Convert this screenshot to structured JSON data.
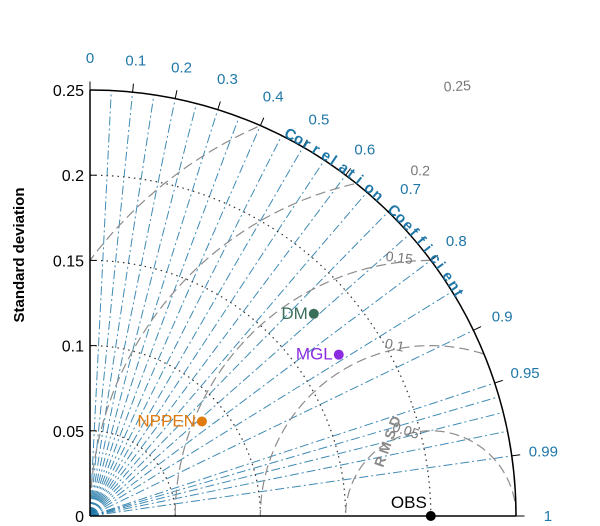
{
  "chart_data": {
    "type": "taylor",
    "title": "",
    "ylabel": "Standard deviation",
    "corr_axis_label": "Correlation Coefficient",
    "rmsd_label": "R M S D",
    "std_ticks": [
      "0",
      "0.05",
      "0.1",
      "0.15",
      "0.2",
      "0.25"
    ],
    "std_tick_values": [
      0,
      0.05,
      0.1,
      0.15,
      0.2,
      0.25
    ],
    "std_max": 0.25,
    "corr_ticks": [
      "0",
      "0.1",
      "0.2",
      "0.3",
      "0.4",
      "0.5",
      "0.6",
      "0.7",
      "0.8",
      "0.9",
      "0.95",
      "0.99",
      "1"
    ],
    "corr_tick_values": [
      0,
      0.1,
      0.2,
      0.3,
      0.4,
      0.5,
      0.6,
      0.7,
      0.8,
      0.9,
      0.95,
      0.99,
      1
    ],
    "rmsd_ticks": [
      "0.05",
      "0.1",
      "0.15",
      "0.2",
      "0.25"
    ],
    "rmsd_tick_values": [
      0.05,
      0.1,
      0.15,
      0.2,
      0.25
    ],
    "reference": {
      "name": "OBS",
      "std": 0.2,
      "corr": 1
    },
    "points": [
      {
        "name": "DM",
        "std": 0.177,
        "corr": 0.742,
        "color": "#3a6f5a"
      },
      {
        "name": "MGL",
        "std": 0.174,
        "corr": 0.839,
        "color": "#8a2be2"
      },
      {
        "name": "NPPEN",
        "std": 0.086,
        "corr": 0.764,
        "color": "#e07b10"
      }
    ],
    "grid": true,
    "colors": {
      "corr": "#1f77a8",
      "rmsd": "#8c8c8c",
      "std": "#000000"
    }
  }
}
